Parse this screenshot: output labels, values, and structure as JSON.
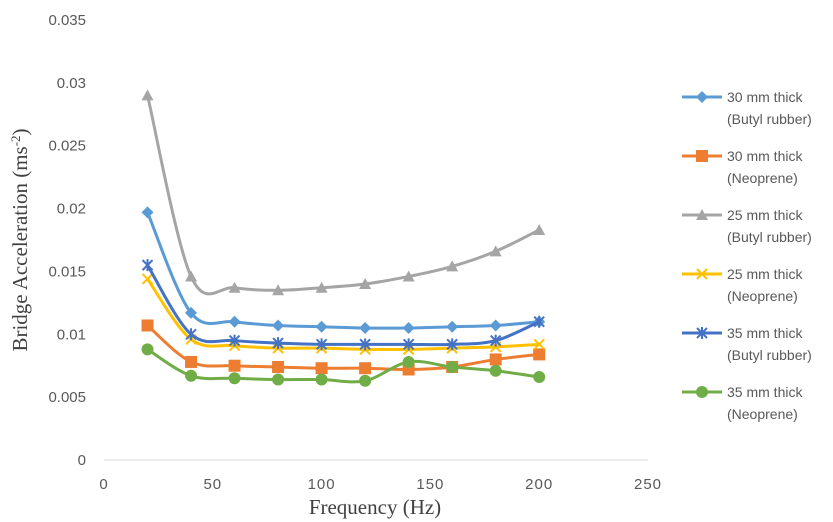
{
  "chart_data": {
    "type": "line",
    "title": "",
    "xlabel": "Frequency (Hz)",
    "ylabel_prefix": "Bridge Acceleration (ms",
    "ylabel_sup": "-2",
    "ylabel_suffix": ")",
    "xlim": [
      0,
      250
    ],
    "ylim": [
      0,
      0.035
    ],
    "xticks": [
      "0",
      "50",
      "100",
      "150",
      "200",
      "250"
    ],
    "yticks": [
      "0",
      "0.005",
      "0.01",
      "0.015",
      "0.02",
      "0.025",
      "0.03",
      "0.035"
    ],
    "grid": false,
    "legend_position": "right",
    "x": [
      20,
      40,
      60,
      80,
      100,
      120,
      140,
      160,
      180,
      200
    ],
    "series": [
      {
        "name_line1": "30 mm thick",
        "name_line2": "(Butyl rubber)",
        "color": "#5B9BD5",
        "marker": "diamond",
        "values": [
          0.0197,
          0.0117,
          0.011,
          0.0107,
          0.0106,
          0.0105,
          0.0105,
          0.0106,
          0.0107,
          0.011
        ]
      },
      {
        "name_line1": "30 mm thick",
        "name_line2": "(Neoprene)",
        "color": "#ED7D31",
        "marker": "square",
        "values": [
          0.0107,
          0.0078,
          0.0075,
          0.0074,
          0.0073,
          0.0073,
          0.0072,
          0.0074,
          0.008,
          0.0084
        ]
      },
      {
        "name_line1": "25 mm thick",
        "name_line2": "(Butyl rubber)",
        "color": "#A5A5A5",
        "marker": "triangle",
        "values": [
          0.029,
          0.0146,
          0.0137,
          0.0135,
          0.0137,
          0.014,
          0.0146,
          0.0154,
          0.0166,
          0.0183
        ]
      },
      {
        "name_line1": "25 mm thick",
        "name_line2": "(Neoprene)",
        "color": "#FFC000",
        "marker": "x",
        "values": [
          0.0144,
          0.0096,
          0.0091,
          0.0089,
          0.0089,
          0.0088,
          0.0088,
          0.0089,
          0.009,
          0.0092
        ]
      },
      {
        "name_line1": "35 mm thick",
        "name_line2": "(Butyl rubber)",
        "color": "#4472C4",
        "marker": "star",
        "values": [
          0.0155,
          0.01,
          0.0095,
          0.0093,
          0.0092,
          0.0092,
          0.0092,
          0.0092,
          0.0095,
          0.011
        ]
      },
      {
        "name_line1": "35 mm thick",
        "name_line2": "(Neoprene)",
        "color": "#70AD47",
        "marker": "circle",
        "values": [
          0.0088,
          0.0067,
          0.0065,
          0.0064,
          0.0064,
          0.0063,
          0.0078,
          0.0074,
          0.0071,
          0.0066
        ]
      }
    ]
  }
}
